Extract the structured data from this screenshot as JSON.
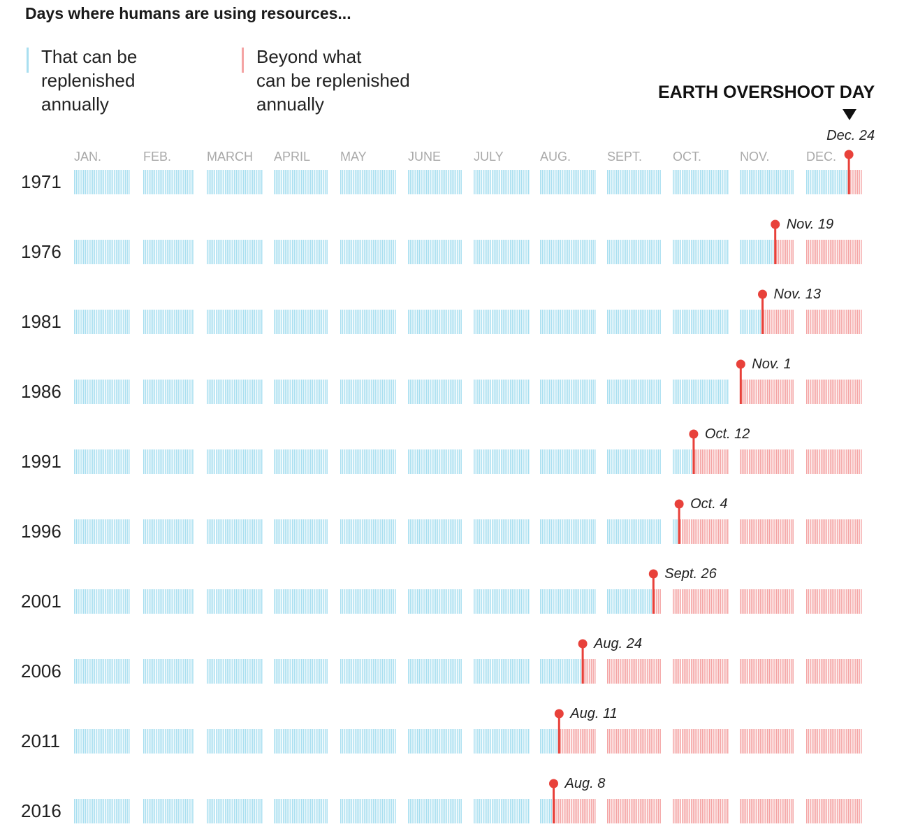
{
  "title": "Days where humans are using resources...",
  "legend": [
    {
      "label": "That can be\nreplenished\nannually",
      "color": "#a9dff0"
    },
    {
      "label": "Beyond what\ncan be replenished\nannually",
      "color": "#f4a3a3"
    }
  ],
  "marker_color": "#e8413a",
  "chart_data": {
    "type": "table",
    "title": "EARTH OVERSHOOT DAY",
    "months": [
      "JAN.",
      "FEB.",
      "MARCH",
      "APRIL",
      "MAY",
      "JUNE",
      "JULY",
      "AUG.",
      "SEPT.",
      "OCT.",
      "NOV.",
      "DEC."
    ],
    "month_days": [
      31,
      28,
      31,
      30,
      31,
      30,
      31,
      31,
      30,
      31,
      30,
      31
    ],
    "rows": [
      {
        "year": "1971",
        "overshoot_day": "Dec. 24",
        "day_of_year": 358
      },
      {
        "year": "1976",
        "overshoot_day": "Nov. 19",
        "day_of_year": 324
      },
      {
        "year": "1981",
        "overshoot_day": "Nov. 13",
        "day_of_year": 317
      },
      {
        "year": "1986",
        "overshoot_day": "Nov. 1",
        "day_of_year": 305
      },
      {
        "year": "1991",
        "overshoot_day": "Oct. 12",
        "day_of_year": 285
      },
      {
        "year": "1996",
        "overshoot_day": "Oct. 4",
        "day_of_year": 277
      },
      {
        "year": "2001",
        "overshoot_day": "Sept. 26",
        "day_of_year": 269
      },
      {
        "year": "2006",
        "overshoot_day": "Aug. 24",
        "day_of_year": 236
      },
      {
        "year": "2011",
        "overshoot_day": "Aug. 11",
        "day_of_year": 223
      },
      {
        "year": "2016",
        "overshoot_day": "Aug. 8",
        "day_of_year": 220
      }
    ]
  }
}
